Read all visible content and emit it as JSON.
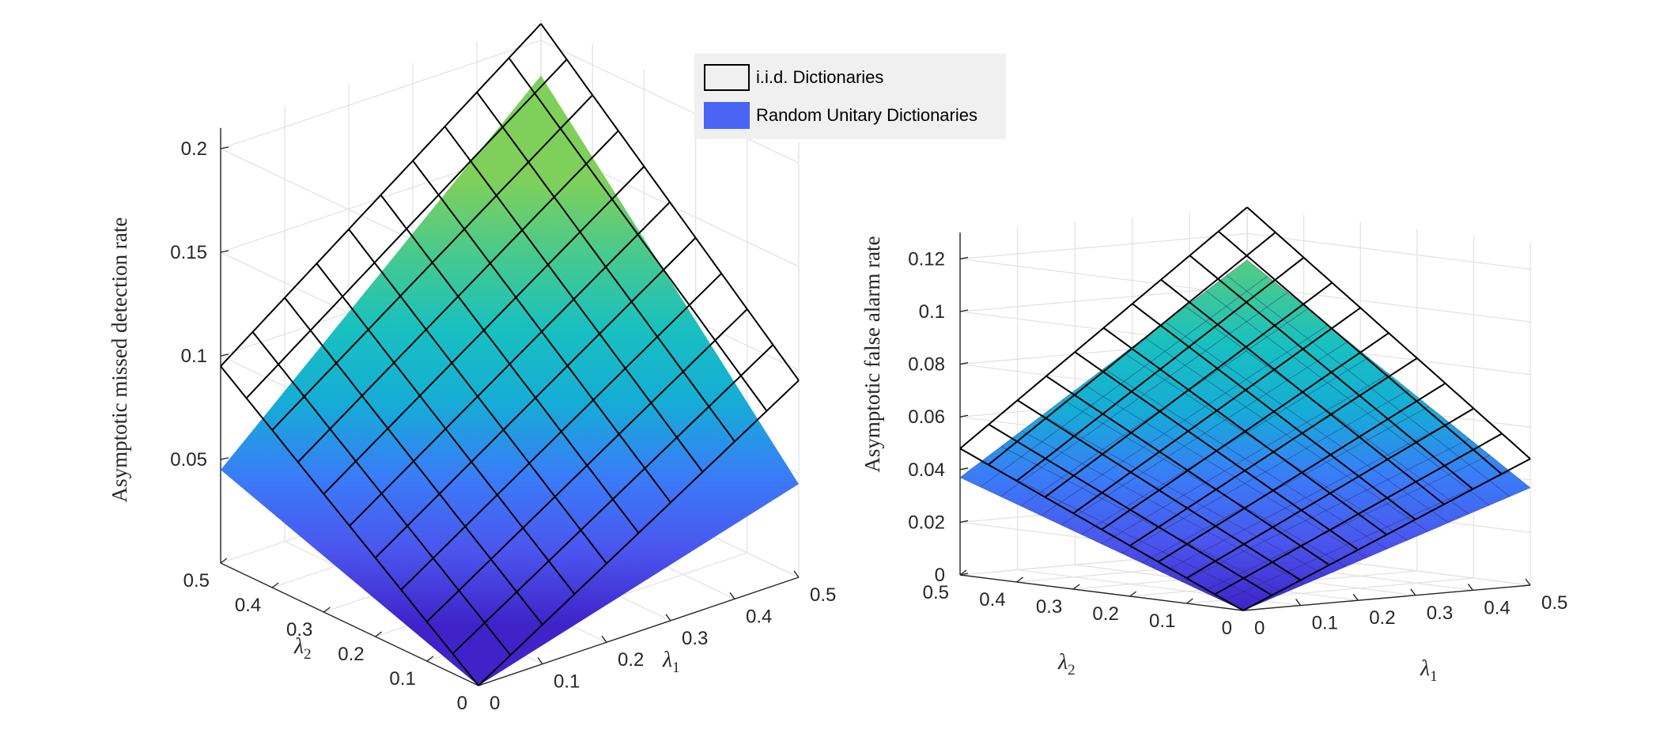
{
  "legend": {
    "items": [
      {
        "label": "i.i.d.  Dictionaries",
        "face": "#f0f0f0",
        "edge": "#000000"
      },
      {
        "label": "Random Unitary Dictionaries",
        "face": "#4a64f5",
        "edge": "#4a64f5"
      }
    ]
  },
  "colormap": [
    "#3f23c9",
    "#4b55ee",
    "#3a7cf8",
    "#16acd6",
    "#18c0c0",
    "#47c98f",
    "#7ed05a"
  ],
  "chart_data": [
    {
      "type": "surface3d",
      "title": "",
      "zlabel": "Asymptotic missed detection rate",
      "xlabel_symbol": "λ",
      "xlabel_sub": "1",
      "ylabel_symbol": "λ",
      "ylabel_sub": "2",
      "xlim": [
        0,
        0.5
      ],
      "ylim": [
        0,
        0.5
      ],
      "zlim": [
        0.0,
        0.21
      ],
      "xticks": [
        "0",
        "0.1",
        "0.2",
        "0.3",
        "0.4",
        "0.5"
      ],
      "yticks": [
        "0",
        "0.1",
        "0.2",
        "0.3",
        "0.4",
        "0.5"
      ],
      "zticks": [
        {
          "value": 0.05,
          "label": "0.05"
        },
        {
          "value": 0.1,
          "label": "0.1"
        },
        {
          "value": 0.15,
          "label": "0.15"
        },
        {
          "value": 0.2,
          "label": "0.2"
        }
      ],
      "grid": true,
      "series": [
        {
          "name": "i.i.d.  Dictionaries",
          "style": "mesh",
          "grid_n": 10,
          "z_at_origin": 0.0,
          "z_at_l1_max": 0.095,
          "z_at_l2_max": 0.095,
          "z_at_both_max": 0.208
        },
        {
          "name": "Random Unitary Dictionaries",
          "style": "surface",
          "z_at_origin": 0.0,
          "z_at_l1_max": 0.045,
          "z_at_l2_max": 0.045,
          "z_at_both_max": 0.183
        }
      ]
    },
    {
      "type": "surface3d",
      "title": "",
      "zlabel": "Asymptotic false alarm rate",
      "xlabel_symbol": "λ",
      "xlabel_sub": "1",
      "ylabel_symbol": "λ",
      "ylabel_sub": "2",
      "xlim": [
        0,
        0.5
      ],
      "ylim": [
        0,
        0.5
      ],
      "zlim": [
        0,
        0.13
      ],
      "xticks": [
        "0",
        "0.1",
        "0.2",
        "0.3",
        "0.4",
        "0.5"
      ],
      "yticks": [
        "0",
        "0.1",
        "0.2",
        "0.3",
        "0.4",
        "0.5"
      ],
      "zticks": [
        {
          "value": 0,
          "label": "0"
        },
        {
          "value": 0.02,
          "label": "0.02"
        },
        {
          "value": 0.04,
          "label": "0.04"
        },
        {
          "value": 0.06,
          "label": "0.06"
        },
        {
          "value": 0.08,
          "label": "0.08"
        },
        {
          "value": 0.1,
          "label": "0.1"
        },
        {
          "value": 0.12,
          "label": "0.12"
        }
      ],
      "grid": true,
      "series": [
        {
          "name": "i.i.d.  Dictionaries",
          "style": "mesh",
          "grid_n": 10,
          "z_at_origin": 0.0,
          "z_at_l1_max": 0.048,
          "z_at_l2_max": 0.048,
          "z_at_both_max": 0.13
        },
        {
          "name": "Random Unitary Dictionaries",
          "style": "surface",
          "grid_n": 14,
          "z_at_origin": 0.0,
          "z_at_l1_max": 0.037,
          "z_at_l2_max": 0.037,
          "z_at_both_max": 0.11
        }
      ]
    }
  ]
}
